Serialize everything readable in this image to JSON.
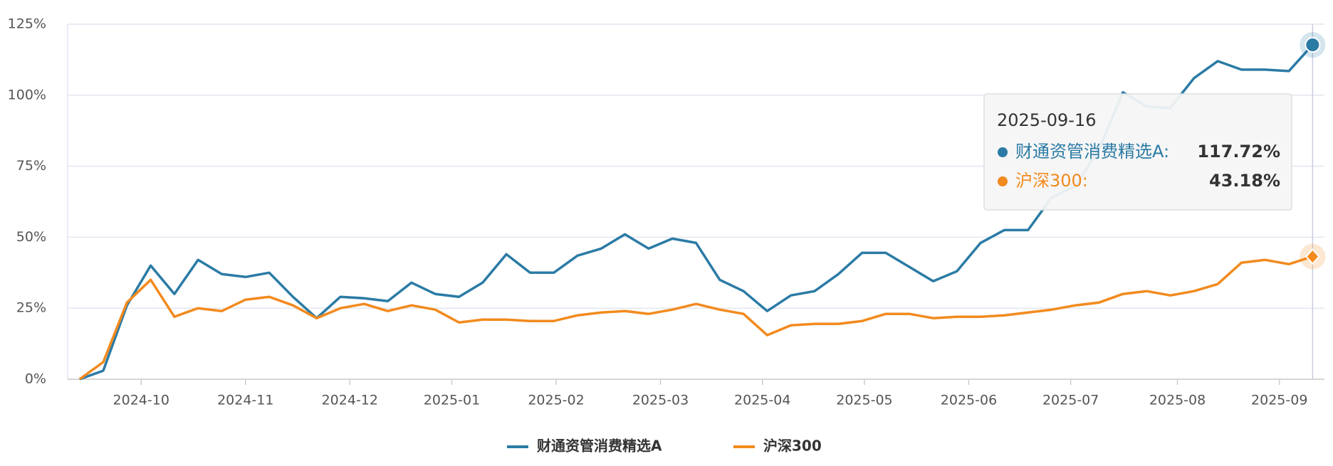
{
  "chart_data": {
    "type": "line",
    "categories": [
      null,
      null,
      null,
      null,
      null,
      null,
      null,
      null,
      null,
      null,
      null,
      null,
      null,
      null,
      null,
      null,
      null,
      null,
      null,
      null,
      null,
      null,
      null,
      null,
      null,
      null,
      null,
      null,
      null,
      null,
      null,
      null,
      null,
      null,
      null,
      null,
      null,
      null,
      null,
      null,
      null,
      null,
      null,
      null,
      null,
      null,
      null,
      null,
      null,
      null,
      null,
      null,
      null
    ],
    "series": [
      {
        "name": "财通资管消费精选A",
        "color": "#2b7ba5",
        "values": [
          0,
          3,
          26,
          40,
          30,
          42,
          37,
          36,
          37.5,
          29,
          21.5,
          29,
          28.5,
          27.5,
          34,
          30,
          29,
          34,
          44,
          37.5,
          37.5,
          43.5,
          46,
          51,
          46,
          49.5,
          48,
          35,
          31,
          24,
          29.5,
          31,
          37,
          44.5,
          44.5,
          39.5,
          34.5,
          38,
          48,
          52.5,
          52.5,
          64,
          68,
          81,
          101,
          96,
          95.5,
          106,
          112,
          109,
          109,
          108.5,
          117.72
        ]
      },
      {
        "name": "沪深300",
        "color": "#f28a1e",
        "values": [
          0,
          6,
          27,
          35,
          22,
          25,
          24,
          28,
          29,
          26,
          21.5,
          25,
          26.5,
          24,
          26,
          24.5,
          20,
          21,
          21,
          20.5,
          20.5,
          22.5,
          23.5,
          24,
          23,
          24.5,
          26.5,
          24.5,
          23,
          15.5,
          19,
          19.5,
          19.5,
          20.5,
          23,
          23,
          21.5,
          22,
          22,
          22.5,
          23.5,
          24.5,
          26,
          27,
          30,
          31,
          29.5,
          31,
          33.5,
          41,
          42,
          40.5,
          43.18
        ]
      }
    ],
    "xlim": [
      -0.5,
      52.5
    ],
    "xticks": [
      {
        "value": 2.6,
        "label": "2024-10"
      },
      {
        "value": 7,
        "label": "2024-11"
      },
      {
        "value": 11.4,
        "label": "2024-12"
      },
      {
        "value": 15.7,
        "label": "2025-01"
      },
      {
        "value": 20.1,
        "label": "2025-02"
      },
      {
        "value": 24.5,
        "label": "2025-03"
      },
      {
        "value": 28.8,
        "label": "2025-04"
      },
      {
        "value": 33.1,
        "label": "2025-05"
      },
      {
        "value": 37.5,
        "label": "2025-06"
      },
      {
        "value": 41.8,
        "label": "2025-07"
      },
      {
        "value": 46.3,
        "label": "2025-08"
      },
      {
        "value": 50.6,
        "label": "2025-09"
      }
    ],
    "ylim": [
      0,
      125
    ],
    "yticks": [
      {
        "value": 0,
        "label": "0%"
      },
      {
        "value": 25,
        "label": "25%"
      },
      {
        "value": 50,
        "label": "50%"
      },
      {
        "value": 75,
        "label": "75%"
      },
      {
        "value": 100,
        "label": "100%"
      },
      {
        "value": 125,
        "label": "125%"
      }
    ],
    "grid": true,
    "legend": "bottom",
    "tooltip": {
      "title": "2025-09-16",
      "rows": [
        {
          "label": "财通资管消费精选A:",
          "value": "117.72%"
        },
        {
          "label": "沪深300:",
          "value": "43.18%"
        }
      ]
    }
  }
}
